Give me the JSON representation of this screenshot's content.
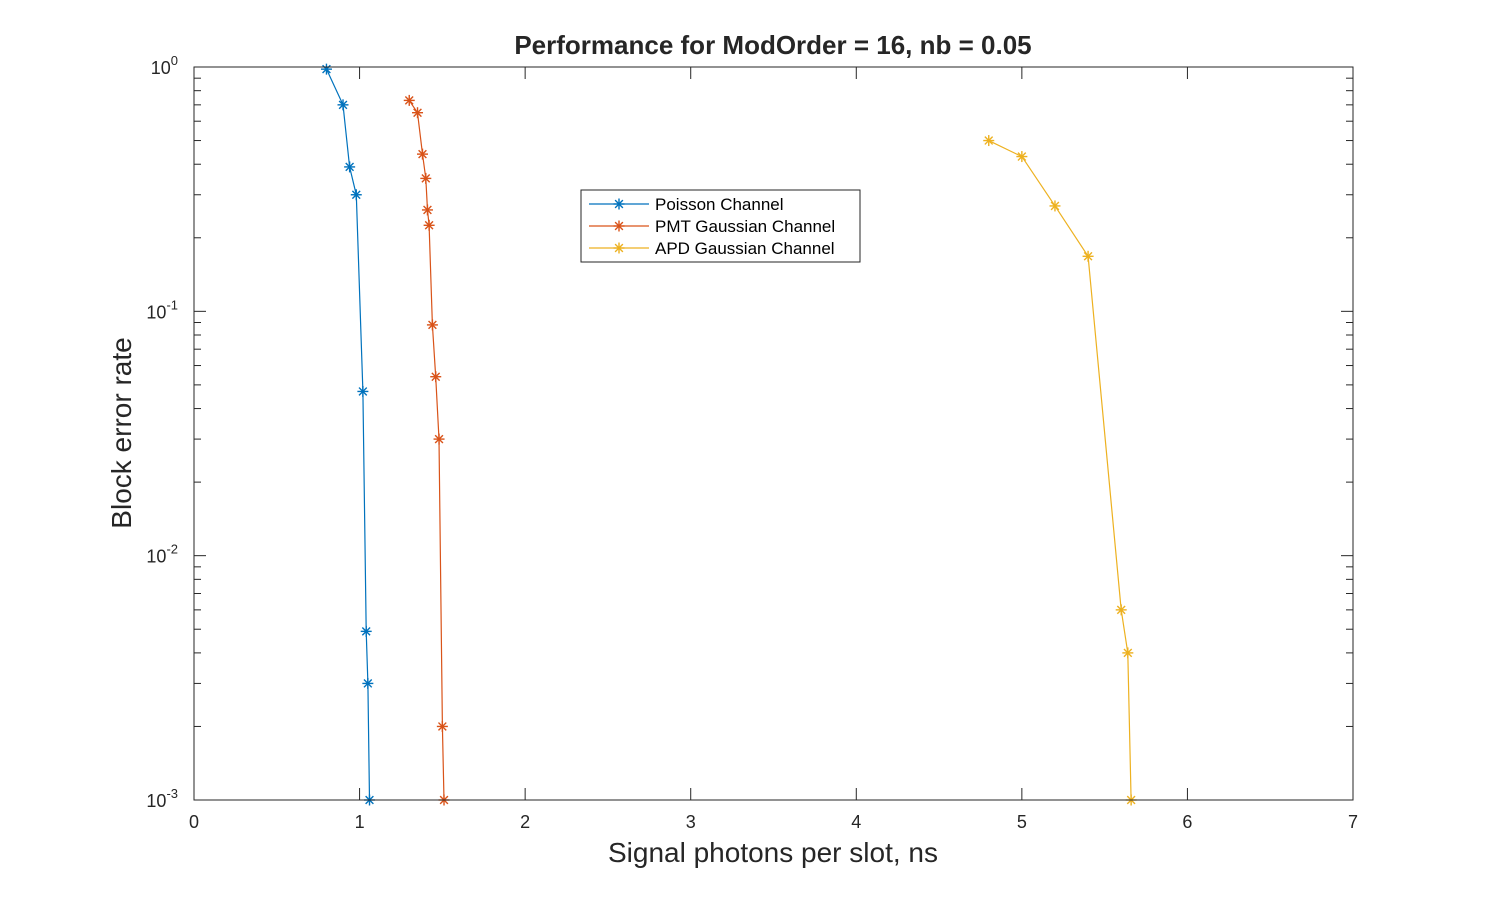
{
  "chart_data": {
    "type": "line",
    "title": "Performance for ModOrder = 16, nb = 0.05",
    "xlabel": "Signal photons per slot, ns",
    "ylabel": "Block error rate",
    "xlim": [
      0,
      7
    ],
    "ylim": [
      0.001,
      1
    ],
    "yscale": "log",
    "grid": false,
    "legend_position": "upper-center",
    "x_ticks": [
      "0",
      "1",
      "2",
      "3",
      "4",
      "5",
      "6",
      "7"
    ],
    "y_ticks": [
      {
        "base": "10",
        "exp": "0"
      },
      {
        "base": "10",
        "exp": "-1"
      },
      {
        "base": "10",
        "exp": "-2"
      },
      {
        "base": "10",
        "exp": "-3"
      }
    ],
    "series": [
      {
        "name": "Poisson Channel",
        "color": "#0072BD",
        "marker": "asterisk",
        "x": [
          0.8,
          0.9,
          0.94,
          0.98,
          1.02,
          1.04,
          1.05,
          1.06
        ],
        "y": [
          0.98,
          0.7,
          0.39,
          0.3,
          0.047,
          0.0049,
          0.003,
          0.001
        ]
      },
      {
        "name": "PMT Gaussian Channel",
        "color": "#D95319",
        "marker": "asterisk",
        "x": [
          1.3,
          1.35,
          1.38,
          1.4,
          1.41,
          1.42,
          1.44,
          1.46,
          1.48,
          1.5,
          1.51
        ],
        "y": [
          0.73,
          0.65,
          0.44,
          0.35,
          0.26,
          0.225,
          0.088,
          0.054,
          0.03,
          0.002,
          0.001
        ]
      },
      {
        "name": "APD Gaussian Channel",
        "color": "#EDB120",
        "marker": "asterisk",
        "x": [
          4.8,
          5.0,
          5.2,
          5.4,
          5.6,
          5.64,
          5.66
        ],
        "y": [
          0.5,
          0.43,
          0.27,
          0.168,
          0.006,
          0.004,
          0.001
        ]
      }
    ]
  }
}
